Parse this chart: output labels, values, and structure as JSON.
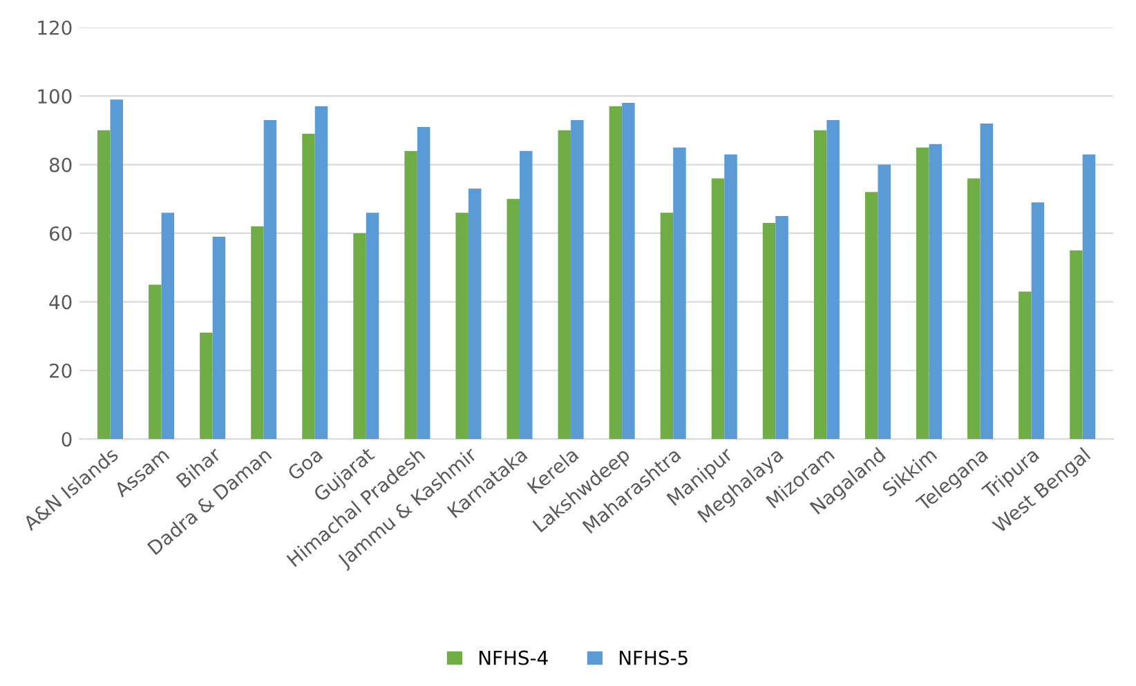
{
  "chart_data": {
    "type": "bar",
    "categories": [
      "A&N Islands",
      "Assam",
      "Bihar",
      "Dadra & Daman",
      "Goa",
      "Gujarat",
      "Himachal Pradesh",
      "Jammu & Kashmir",
      "Karnataka",
      "Kerela",
      "Lakshwdeep",
      "Maharashtra",
      "Manipur",
      "Meghalaya",
      "Mizoram",
      "Nagaland",
      "Sikkim",
      "Telegana",
      "Tripura",
      "West Bengal"
    ],
    "series": [
      {
        "name": "NFHS-4",
        "color": "#70ad47",
        "values": [
          90,
          45,
          31,
          62,
          89,
          60,
          84,
          66,
          70,
          90,
          97,
          66,
          76,
          63,
          90,
          72,
          85,
          76,
          43,
          55
        ]
      },
      {
        "name": "NFHS-5",
        "color": "#5b9bd5",
        "values": [
          99,
          66,
          59,
          93,
          97,
          66,
          91,
          73,
          84,
          93,
          98,
          85,
          83,
          65,
          93,
          80,
          86,
          92,
          69,
          83
        ]
      }
    ],
    "ylim": [
      0,
      120
    ],
    "yticks": [
      0,
      20,
      40,
      60,
      80,
      100,
      120
    ],
    "grid": "y",
    "legend": "bottom"
  }
}
